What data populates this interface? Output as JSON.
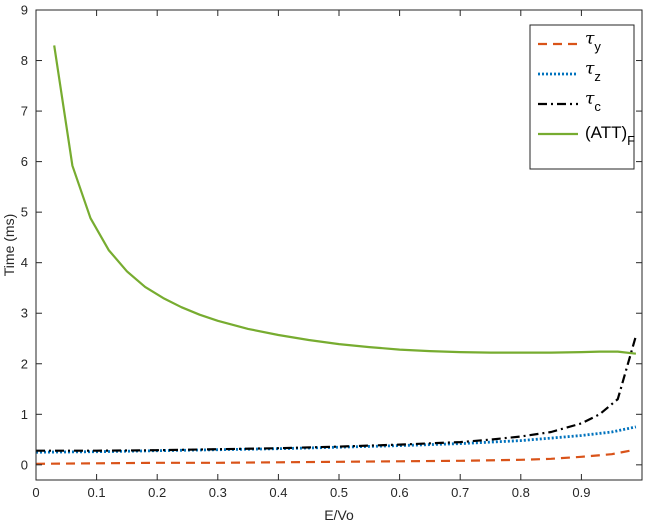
{
  "chart_data": {
    "type": "line",
    "xlabel": "E/Vo",
    "ylabel": "Time (ms)",
    "xlim": [
      0,
      1
    ],
    "ylim": [
      -0.3,
      9
    ],
    "x_ticks": [
      "0",
      "0.1",
      "0.2",
      "0.3",
      "0.4",
      "0.5",
      "0.6",
      "0.7",
      "0.8",
      "0.9"
    ],
    "y_ticks": [
      "0",
      "1",
      "2",
      "3",
      "4",
      "5",
      "6",
      "7",
      "8",
      "9"
    ],
    "grid": false,
    "legend_position": "top-right",
    "series": [
      {
        "name": "τ",
        "sub": "y",
        "color": "#D95319",
        "style": "dashed",
        "x": [
          0.0,
          0.1,
          0.2,
          0.3,
          0.4,
          0.5,
          0.6,
          0.7,
          0.8,
          0.85,
          0.9,
          0.95,
          0.98
        ],
        "y": [
          0.02,
          0.03,
          0.04,
          0.04,
          0.05,
          0.06,
          0.07,
          0.08,
          0.1,
          0.12,
          0.16,
          0.21,
          0.28
        ]
      },
      {
        "name": "τ",
        "sub": "z",
        "color": "#0072BD",
        "style": "dotted",
        "x": [
          0.0,
          0.1,
          0.2,
          0.3,
          0.4,
          0.5,
          0.6,
          0.7,
          0.8,
          0.85,
          0.9,
          0.95,
          0.99
        ],
        "y": [
          0.25,
          0.26,
          0.28,
          0.3,
          0.32,
          0.35,
          0.38,
          0.42,
          0.48,
          0.53,
          0.58,
          0.65,
          0.75
        ]
      },
      {
        "name": "τ",
        "sub": "c",
        "color": "#000000",
        "style": "dashdot",
        "x": [
          0.0,
          0.1,
          0.2,
          0.3,
          0.4,
          0.5,
          0.6,
          0.7,
          0.75,
          0.8,
          0.85,
          0.9,
          0.93,
          0.96,
          0.99
        ],
        "y": [
          0.28,
          0.28,
          0.29,
          0.31,
          0.33,
          0.36,
          0.4,
          0.45,
          0.5,
          0.56,
          0.65,
          0.82,
          1.0,
          1.3,
          2.55
        ]
      },
      {
        "name": "(ATT)",
        "sub": "F",
        "color": "#77AC30",
        "style": "solid",
        "x": [
          0.03,
          0.06,
          0.09,
          0.12,
          0.15,
          0.18,
          0.21,
          0.24,
          0.27,
          0.3,
          0.35,
          0.4,
          0.45,
          0.5,
          0.55,
          0.6,
          0.65,
          0.7,
          0.75,
          0.8,
          0.85,
          0.9,
          0.93,
          0.96,
          0.99
        ],
        "y": [
          8.3,
          5.92,
          4.88,
          4.25,
          3.83,
          3.52,
          3.3,
          3.12,
          2.97,
          2.85,
          2.69,
          2.57,
          2.47,
          2.39,
          2.33,
          2.28,
          2.25,
          2.23,
          2.22,
          2.22,
          2.22,
          2.23,
          2.24,
          2.24,
          2.2
        ]
      }
    ]
  }
}
